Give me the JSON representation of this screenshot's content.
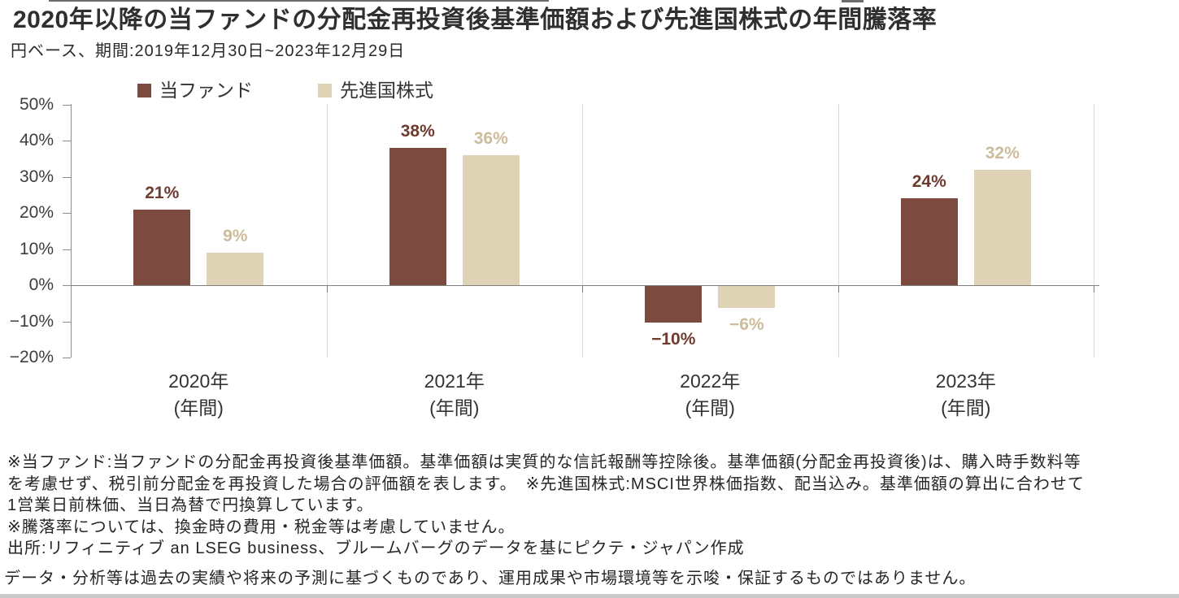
{
  "header": {
    "title": "2020年以降の当ファンドの分配金再投資後基準価額および先進国株式の年間騰落率",
    "subtitle": "円ベース、期間:2019年12月30日~2023年12月29日"
  },
  "colors": {
    "fund": "#7C4A3E",
    "benchmark": "#DFD3B6",
    "fund_label": "#6F3B2F",
    "benchmark_label": "#CDBC9B",
    "axis": "#8C8C8C",
    "axis_dark": "#7F7F7F",
    "separator": "#DBDBDB",
    "bottom_band": "#CBCBCB"
  },
  "chart_data": {
    "type": "bar",
    "title": "2020年以降の当ファンドの分配金再投資後基準価額および先進国株式の年間騰落率",
    "subtitle": "円ベース、期間:2019年12月30日~2023年12月29日",
    "categories": [
      "2020年",
      "2021年",
      "2022年",
      "2023年"
    ],
    "category_note": "(年間)",
    "series": [
      {
        "name": "当ファンド",
        "color": "#7C4A3E",
        "label_color": "#6F3B2F",
        "values": [
          21,
          38,
          -10,
          24
        ],
        "labels": [
          "21%",
          "38%",
          "−10%",
          "24%"
        ]
      },
      {
        "name": "先進国株式",
        "color": "#DFD3B6",
        "label_color": "#CDBC9B",
        "values": [
          9,
          36,
          -6,
          32
        ],
        "labels": [
          "9%",
          "36%",
          "−6%",
          "32%"
        ]
      }
    ],
    "xlabel": "",
    "ylabel": "",
    "ylim": [
      -20,
      50
    ],
    "ytick_values": [
      50,
      40,
      30,
      20,
      10,
      0,
      -10,
      -20
    ],
    "yticks": [
      "50%",
      "40%",
      "30%",
      "20%",
      "10%",
      "0%",
      "−10%",
      "−20%"
    ],
    "grid": "vertical-category-separators",
    "legend_position": "top-left"
  },
  "footnotes": [
    "※当ファンド:当ファンドの分配金再投資後基準価額。基準価額は実質的な信託報酬等控除後。基準価額(分配金再投資後)は、購入時手数料等",
    "を考慮せず、税引前分配金を再投資した場合の評価額を表します。　※先進国株式:MSCI世界株価指数、配当込み。基準価額の算出に合わせて",
    "1営業日前株価、当日為替で円換算しています。",
    "※騰落率については、換金時の費用・税金等は考慮していません。",
    "出所:リフィニティブ an LSEG business、ブルームバーグのデータを基にピクテ・ジャパン作成"
  ],
  "disclaimer": "データ・分析等は過去の実績や将来の予測に基づくものであり、運用成果や市場環境等を示唆・保証するものではありません。"
}
